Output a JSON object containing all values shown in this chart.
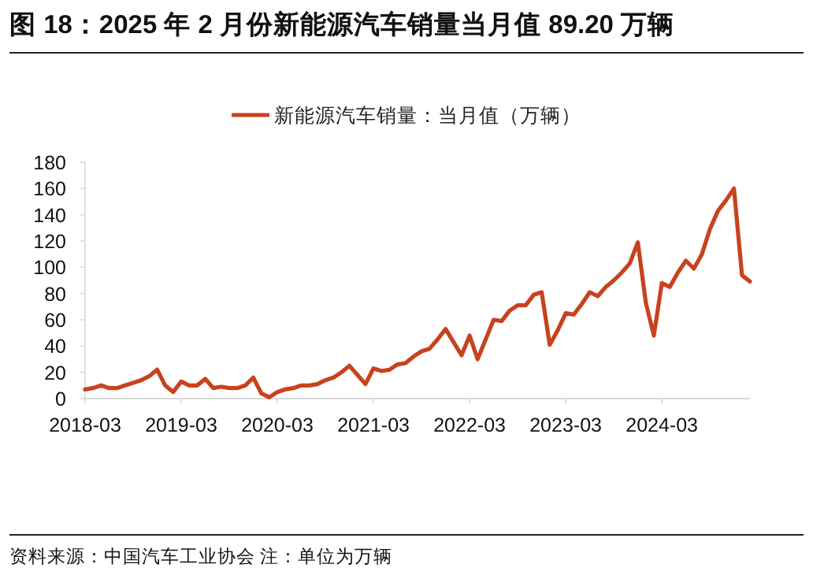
{
  "chart_data": {
    "type": "line",
    "title": "图 18：2025 年 2 月份新能源汽车销量当月值 89.20 万辆",
    "x": [
      "2018-03",
      "2018-04",
      "2018-05",
      "2018-06",
      "2018-07",
      "2018-08",
      "2018-09",
      "2018-10",
      "2018-11",
      "2018-12",
      "2019-01",
      "2019-02",
      "2019-03",
      "2019-04",
      "2019-05",
      "2019-06",
      "2019-07",
      "2019-08",
      "2019-09",
      "2019-10",
      "2019-11",
      "2019-12",
      "2020-01",
      "2020-02",
      "2020-03",
      "2020-04",
      "2020-05",
      "2020-06",
      "2020-07",
      "2020-08",
      "2020-09",
      "2020-10",
      "2020-11",
      "2020-12",
      "2021-01",
      "2021-02",
      "2021-03",
      "2021-04",
      "2021-05",
      "2021-06",
      "2021-07",
      "2021-08",
      "2021-09",
      "2021-10",
      "2021-11",
      "2021-12",
      "2022-01",
      "2022-02",
      "2022-03",
      "2022-04",
      "2022-05",
      "2022-06",
      "2022-07",
      "2022-08",
      "2022-09",
      "2022-10",
      "2022-11",
      "2022-12",
      "2023-01",
      "2023-02",
      "2023-03",
      "2023-04",
      "2023-05",
      "2023-06",
      "2023-07",
      "2023-08",
      "2023-09",
      "2023-10",
      "2023-11",
      "2023-12",
      "2024-01",
      "2024-02",
      "2024-03",
      "2024-04",
      "2024-05",
      "2024-06",
      "2024-07",
      "2024-08",
      "2024-09",
      "2024-10",
      "2024-11",
      "2024-12",
      "2025-01",
      "2025-02"
    ],
    "series": [
      {
        "name": "新能源汽车销量：当月值（万辆）",
        "color": "#c8421e",
        "values": [
          7,
          8,
          10,
          8,
          8,
          10,
          12,
          14,
          17,
          22,
          10,
          5,
          13,
          10,
          10,
          15,
          8,
          9,
          8,
          8,
          10,
          16,
          4,
          1,
          5,
          7,
          8,
          10,
          10,
          11,
          14,
          16,
          20,
          25,
          18,
          11,
          23,
          21,
          22,
          26,
          27,
          32,
          36,
          38,
          45,
          53,
          43,
          33,
          48,
          30,
          45,
          60,
          59,
          67,
          71,
          71,
          79,
          81,
          41,
          52,
          65,
          64,
          72,
          81,
          78,
          85,
          90,
          96,
          103,
          119,
          73,
          48,
          88,
          85,
          96,
          105,
          99,
          110,
          129,
          143,
          151,
          160,
          94,
          89.2
        ]
      }
    ],
    "xlim": [
      "2018-03",
      "2025-02"
    ],
    "xticks": [
      "2018-03",
      "2019-03",
      "2020-03",
      "2021-03",
      "2022-03",
      "2023-03",
      "2024-03"
    ],
    "ylim": [
      0,
      180
    ],
    "yticks": [
      0,
      20,
      40,
      60,
      80,
      100,
      120,
      140,
      160,
      180
    ],
    "grid": false,
    "legend": "top",
    "marker": "none",
    "line_style": "solid",
    "annotations": [
      "资料来源：中国汽车工业协会 注：单位为万辆"
    ]
  }
}
